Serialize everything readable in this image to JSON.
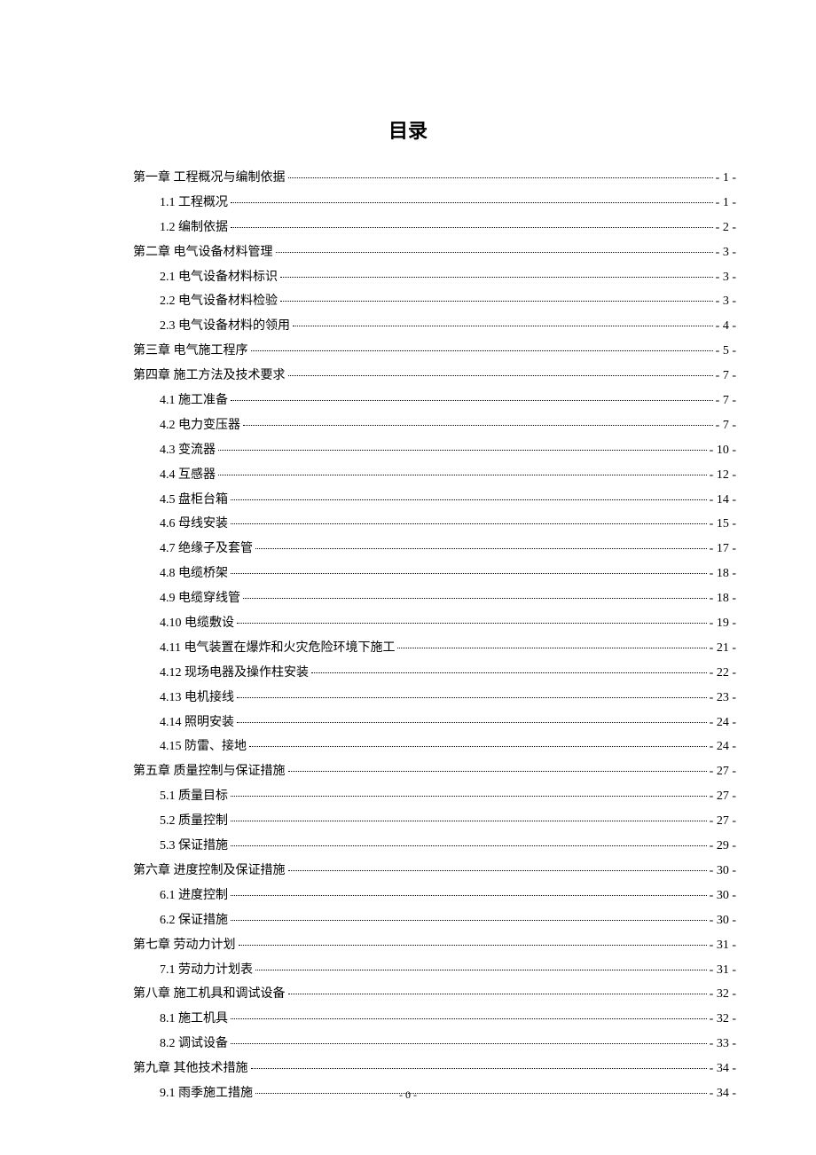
{
  "title": "目录",
  "page_footer": "- 0 -",
  "entries": [
    {
      "level": 0,
      "label": "第一章  工程概况与编制依据",
      "page": "- 1 -"
    },
    {
      "level": 1,
      "label": "1.1 工程概况",
      "page": "- 1 -"
    },
    {
      "level": 1,
      "label": "1.2 编制依据",
      "page": "- 2 -"
    },
    {
      "level": 0,
      "label": "第二章  电气设备材料管理",
      "page": "- 3 -"
    },
    {
      "level": 1,
      "label": "2.1 电气设备材料标识",
      "page": "- 3 -"
    },
    {
      "level": 1,
      "label": "2.2 电气设备材料检验",
      "page": "- 3 -"
    },
    {
      "level": 1,
      "label": "2.3 电气设备材料的领用",
      "page": "- 4 -"
    },
    {
      "level": 0,
      "label": "第三章  电气施工程序",
      "page": "- 5 -"
    },
    {
      "level": 0,
      "label": "第四章  施工方法及技术要求",
      "page": "- 7 -"
    },
    {
      "level": 1,
      "label": "4.1 施工准备",
      "page": "- 7 -"
    },
    {
      "level": 1,
      "label": "4.2 电力变压器",
      "page": "- 7 -"
    },
    {
      "level": 1,
      "label": "4.3 变流器",
      "page": "- 10 -"
    },
    {
      "level": 1,
      "label": "4.4 互感器",
      "page": "- 12 -"
    },
    {
      "level": 1,
      "label": "4.5 盘柜台箱",
      "page": "- 14 -"
    },
    {
      "level": 1,
      "label": "4.6 母线安装",
      "page": "- 15 -"
    },
    {
      "level": 1,
      "label": "4.7 绝缘子及套管",
      "page": "- 17 -"
    },
    {
      "level": 1,
      "label": "4.8 电缆桥架",
      "page": "- 18 -"
    },
    {
      "level": 1,
      "label": "4.9 电缆穿线管",
      "page": "- 18 -"
    },
    {
      "level": 1,
      "label": "4.10 电缆敷设",
      "page": "- 19 -"
    },
    {
      "level": 1,
      "label": "4.11 电气装置在爆炸和火灾危险环境下施工",
      "page": "- 21 -"
    },
    {
      "level": 1,
      "label": "4.12 现场电器及操作柱安装",
      "page": "- 22 -"
    },
    {
      "level": 1,
      "label": "4.13 电机接线",
      "page": "- 23 -"
    },
    {
      "level": 1,
      "label": "4.14 照明安装",
      "page": "- 24 -"
    },
    {
      "level": 1,
      "label": "4.15 防雷、接地",
      "page": "- 24 -"
    },
    {
      "level": 0,
      "label": "第五章  质量控制与保证措施",
      "page": "- 27 -"
    },
    {
      "level": 1,
      "label": "5.1 质量目标",
      "page": "- 27 -"
    },
    {
      "level": 1,
      "label": "5.2 质量控制",
      "page": "- 27 -"
    },
    {
      "level": 1,
      "label": "5.3 保证措施",
      "page": "- 29 -"
    },
    {
      "level": 0,
      "label": "第六章  进度控制及保证措施",
      "page": "- 30 -"
    },
    {
      "level": 1,
      "label": "6.1 进度控制",
      "page": "- 30 -"
    },
    {
      "level": 1,
      "label": "6.2 保证措施",
      "page": "- 30 -"
    },
    {
      "level": 0,
      "label": "第七章  劳动力计划",
      "page": "- 31 -"
    },
    {
      "level": 1,
      "label": "7.1 劳动力计划表",
      "page": "- 31 -"
    },
    {
      "level": 0,
      "label": "第八章  施工机具和调试设备",
      "page": "- 32 -"
    },
    {
      "level": 1,
      "label": "8.1 施工机具",
      "page": "- 32 -"
    },
    {
      "level": 1,
      "label": "8.2 调试设备",
      "page": "- 33 -"
    },
    {
      "level": 0,
      "label": "第九章  其他技术措施",
      "page": "- 34 -"
    },
    {
      "level": 1,
      "label": "9.1 雨季施工措施",
      "page": "- 34 -"
    }
  ]
}
